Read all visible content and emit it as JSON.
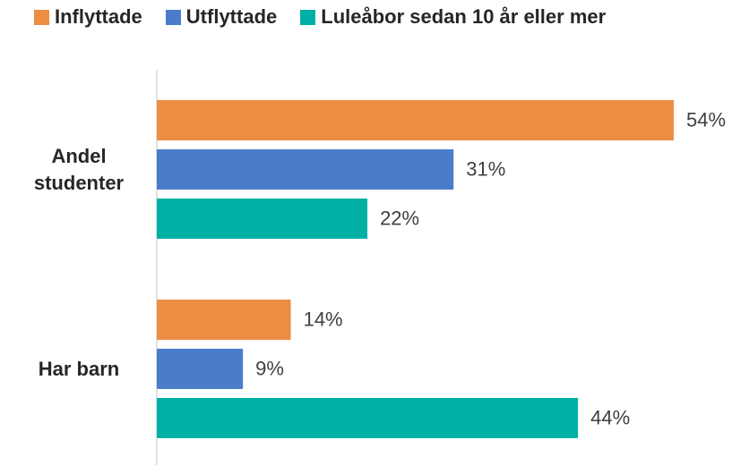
{
  "chart_data": {
    "type": "bar",
    "orientation": "horizontal",
    "categories": [
      "Andel studenter",
      "Har barn"
    ],
    "series": [
      {
        "name": "Inflyttade",
        "color": "#ED8D43",
        "values": [
          54,
          14
        ],
        "value_labels": [
          "54%",
          "14%"
        ]
      },
      {
        "name": "Utflyttade",
        "color": "#4A7CCB",
        "values": [
          31,
          9
        ],
        "value_labels": [
          "31%",
          "9%"
        ]
      },
      {
        "name": "Luleåbor sedan 10 år eller mer",
        "color": "#00B0A5",
        "values": [
          22,
          44
        ],
        "value_labels": [
          "22%",
          "44%"
        ]
      }
    ],
    "legend": "top"
  }
}
